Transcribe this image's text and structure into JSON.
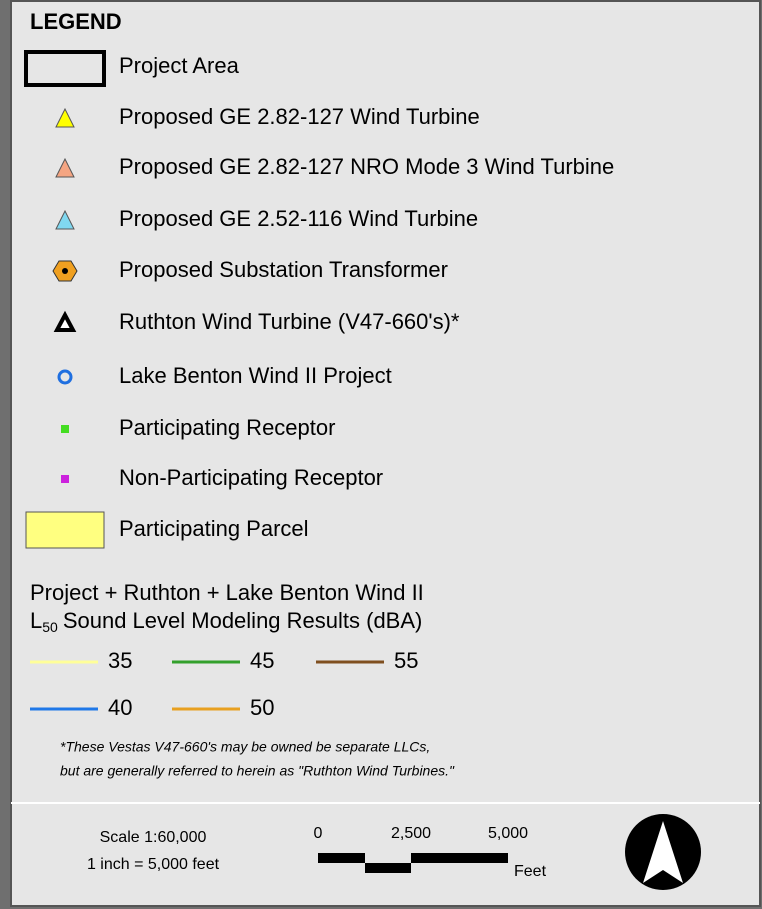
{
  "legend": {
    "title": "LEGEND",
    "items": [
      "Project Area",
      "Proposed GE 2.82-127 Wind Turbine",
      "Proposed GE 2.82-127 NRO Mode 3 Wind Turbine",
      "Proposed GE 2.52-116 Wind Turbine",
      "Proposed Substation Transformer",
      "Ruthton Wind Turbine (V47-660's)*",
      "Lake Benton Wind II Project",
      "Participating Receptor",
      "Non-Participating Receptor",
      "Participating Parcel"
    ],
    "contours": {
      "heading_line1": "Project + Ruthton + Lake Benton Wind II",
      "heading_symbol": "L",
      "heading_subscript": "50",
      "heading_rest": "Sound Level Modeling Results (dBA)",
      "levels": [
        {
          "value": 35,
          "color": "#ffff99"
        },
        {
          "value": 45,
          "color": "#33a02c"
        },
        {
          "value": 55,
          "color": "#7f4f1f"
        },
        {
          "value": 40,
          "color": "#1f78e8"
        },
        {
          "value": 50,
          "color": "#e8a020"
        }
      ]
    },
    "footnote": [
      "*These Vestas V47-660's may be owned be separate LLCs,",
      "but are generally referred to herein as \"Ruthton Wind Turbines.\""
    ]
  },
  "scale": {
    "ratio": "Scale 1:60,000",
    "equivalence": "1 inch = 5,000 feet",
    "bar_labels": [
      "0",
      "2,500",
      "5,000"
    ],
    "unit": "Feet"
  }
}
